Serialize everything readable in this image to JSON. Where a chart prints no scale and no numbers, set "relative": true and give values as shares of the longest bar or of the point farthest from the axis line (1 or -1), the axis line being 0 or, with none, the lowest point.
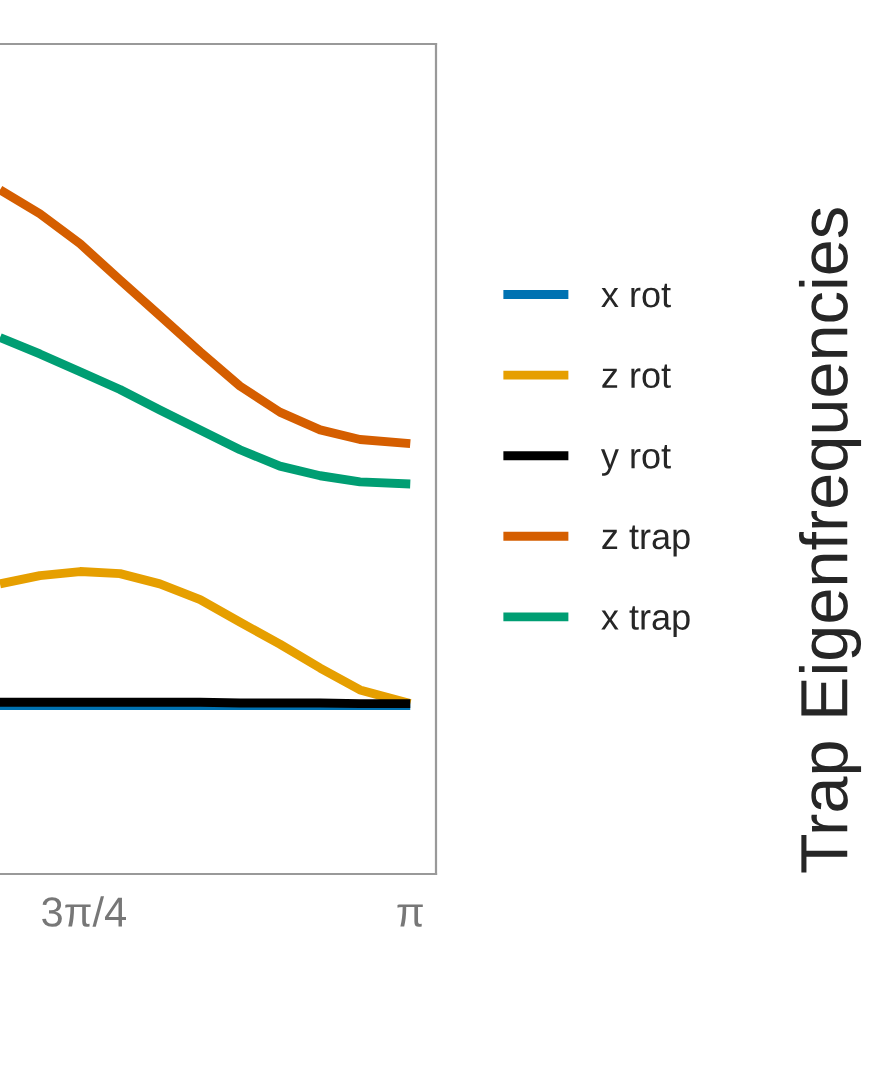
{
  "chart_data": {
    "type": "line",
    "relative": true,
    "annotations": [
      "Trap Eigenfrequencies"
    ],
    "x": [
      2.154,
      2.25,
      2.347,
      2.443,
      2.539,
      2.636,
      2.732,
      2.828,
      2.925,
      3.021,
      3.142
    ],
    "xlim": [
      2.154,
      3.204
    ],
    "xticks": [
      {
        "value": 2.356,
        "label": "3π/4"
      },
      {
        "value": 3.142,
        "label": "π"
      }
    ],
    "tick_labels": "x",
    "grid": false,
    "legend": "right",
    "marker": "none",
    "line_style": "solid",
    "series": [
      {
        "name": "x rot",
        "color": "#0072b2",
        "values": [
          0.246,
          0.246,
          0.246,
          0.246,
          0.246,
          0.246,
          0.246,
          0.246,
          0.246,
          0.246,
          0.246
        ]
      },
      {
        "name": "z rot",
        "color": "#e69f00",
        "values": [
          0.424,
          0.436,
          0.442,
          0.439,
          0.424,
          0.401,
          0.368,
          0.336,
          0.301,
          0.269,
          0.249
        ]
      },
      {
        "name": "y rot",
        "color": "#000000",
        "values": [
          0.251,
          0.251,
          0.251,
          0.251,
          0.251,
          0.251,
          0.25,
          0.25,
          0.25,
          0.249,
          0.249
        ]
      },
      {
        "name": "z trap",
        "color": "#d55e00",
        "values": [
          1.0,
          0.965,
          0.921,
          0.868,
          0.816,
          0.763,
          0.713,
          0.675,
          0.649,
          0.635,
          0.629
        ]
      },
      {
        "name": "x trap",
        "color": "#009e73",
        "values": [
          0.784,
          0.76,
          0.734,
          0.708,
          0.678,
          0.649,
          0.62,
          0.596,
          0.582,
          0.573,
          0.57
        ]
      }
    ]
  }
}
